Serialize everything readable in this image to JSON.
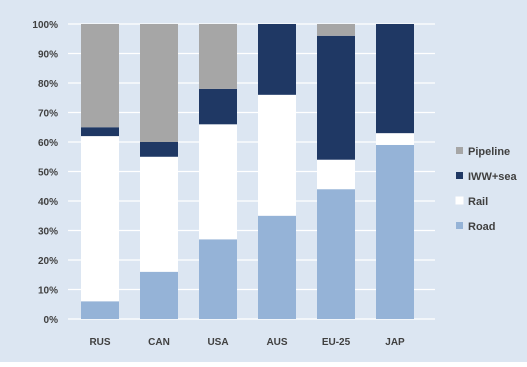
{
  "chart_data": {
    "type": "bar",
    "stacked": true,
    "categories": [
      "RUS",
      "CAN",
      "USA",
      "AUS",
      "EU-25",
      "JAP"
    ],
    "series": [
      {
        "name": "Road",
        "color": "#95B3D7",
        "values": [
          6,
          16,
          27,
          35,
          44,
          59
        ]
      },
      {
        "name": "Rail",
        "color": "#FFFFFF",
        "values": [
          56,
          39,
          39,
          41,
          10,
          4
        ]
      },
      {
        "name": "IWW+sea",
        "color": "#1F3864",
        "values": [
          3,
          5,
          12,
          24,
          42,
          37
        ]
      },
      {
        "name": "Pipeline",
        "color": "#A6A6A6",
        "values": [
          35,
          40,
          22,
          0,
          4,
          0
        ]
      }
    ],
    "yticks": [
      "0%",
      "10%",
      "20%",
      "30%",
      "40%",
      "50%",
      "60%",
      "70%",
      "80%",
      "90%",
      "100%"
    ],
    "ylim": [
      0,
      100
    ],
    "grid": true,
    "legend_position": "right",
    "legend_order": [
      "Pipeline",
      "IWW+sea",
      "Rail",
      "Road"
    ],
    "title": "",
    "xlabel": "",
    "ylabel": "",
    "colors": {
      "plot_background": "#DCE6F2",
      "gridline": "#ffffff",
      "axis_text": "#404040"
    }
  }
}
